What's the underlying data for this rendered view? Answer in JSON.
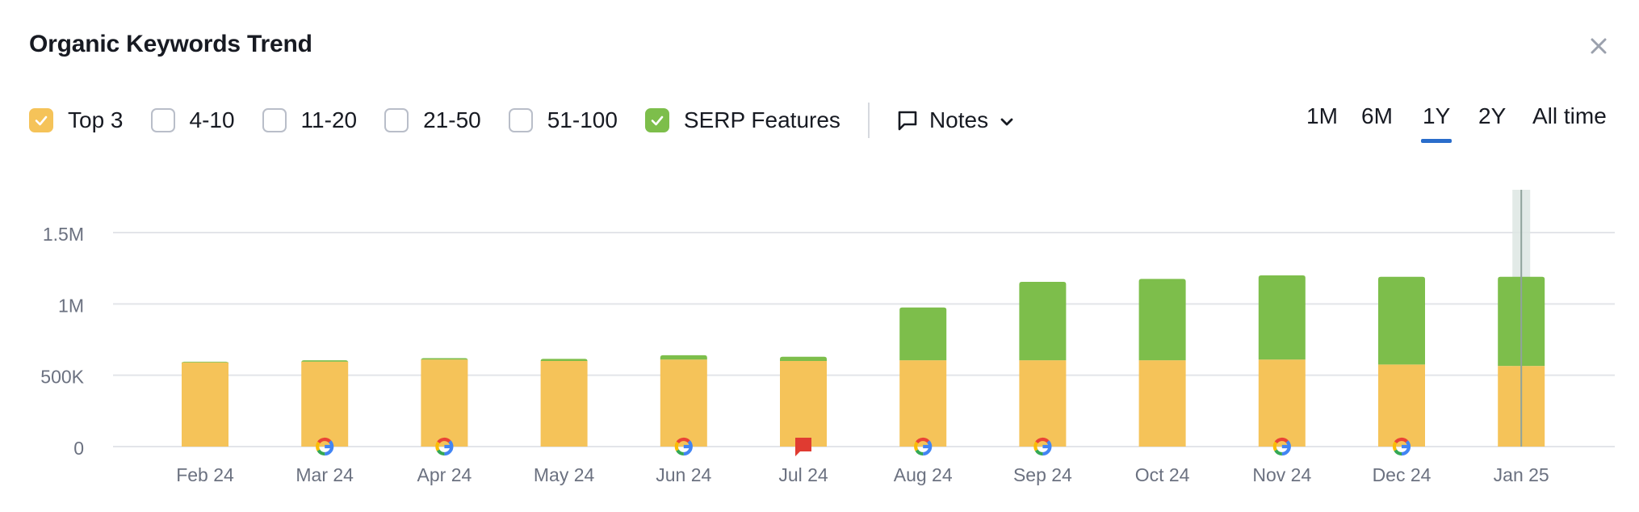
{
  "title": "Organic Keywords Trend",
  "close_icon": "close-icon",
  "filters": [
    {
      "label": "Top 3",
      "checked": true,
      "color": "#f5c359"
    },
    {
      "label": "4-10",
      "checked": false,
      "color": "#ffffff"
    },
    {
      "label": "11-20",
      "checked": false,
      "color": "#ffffff"
    },
    {
      "label": "21-50",
      "checked": false,
      "color": "#ffffff"
    },
    {
      "label": "51-100",
      "checked": false,
      "color": "#ffffff"
    },
    {
      "label": "SERP Features",
      "checked": true,
      "color": "#7dbe4b"
    }
  ],
  "notes": {
    "label": "Notes",
    "icon": "comment-icon",
    "dropdown_icon": "chevron-down-icon"
  },
  "periods": [
    {
      "label": "1M",
      "active": false
    },
    {
      "label": "6M",
      "active": false
    },
    {
      "label": "1Y",
      "active": true
    },
    {
      "label": "2Y",
      "active": false
    },
    {
      "label": "All time",
      "active": false
    }
  ],
  "colors": {
    "top3": "#f5c359",
    "serp": "#7dbe4b",
    "accent": "#2a6dcb",
    "grid": "#e3e5e9",
    "note_flag": "#e03b31"
  },
  "chart_data": {
    "type": "bar",
    "stacked": true,
    "categories": [
      "Feb 24",
      "Mar 24",
      "Apr 24",
      "May 24",
      "Jun 24",
      "Jul 24",
      "Aug 24",
      "Sep 24",
      "Oct 24",
      "Nov 24",
      "Dec 24",
      "Jan 25"
    ],
    "series": [
      {
        "name": "Top 3",
        "color": "#f5c359",
        "values": [
          590000,
          595000,
          610000,
          600000,
          610000,
          600000,
          605000,
          605000,
          605000,
          610000,
          575000,
          565000
        ]
      },
      {
        "name": "SERP Features",
        "color": "#7dbe4b",
        "values": [
          5000,
          10000,
          10000,
          15000,
          30000,
          30000,
          370000,
          550000,
          570000,
          590000,
          615000,
          625000
        ]
      }
    ],
    "ylim": [
      0,
      1500000
    ],
    "yticks": [
      0,
      500000,
      1000000,
      1500000
    ],
    "ytick_labels": [
      "0",
      "500K",
      "1M",
      "1.5M"
    ],
    "grid": true,
    "markers": [
      {
        "category": "Mar 24",
        "type": "google-icon"
      },
      {
        "category": "Apr 24",
        "type": "google-icon"
      },
      {
        "category": "Jun 24",
        "type": "google-icon"
      },
      {
        "category": "Jul 24",
        "type": "note-flag-icon"
      },
      {
        "category": "Aug 24",
        "type": "google-icon"
      },
      {
        "category": "Sep 24",
        "type": "google-icon"
      },
      {
        "category": "Nov 24",
        "type": "google-icon"
      },
      {
        "category": "Dec 24",
        "type": "google-icon"
      }
    ],
    "highlighted_category": "Jan 25"
  }
}
